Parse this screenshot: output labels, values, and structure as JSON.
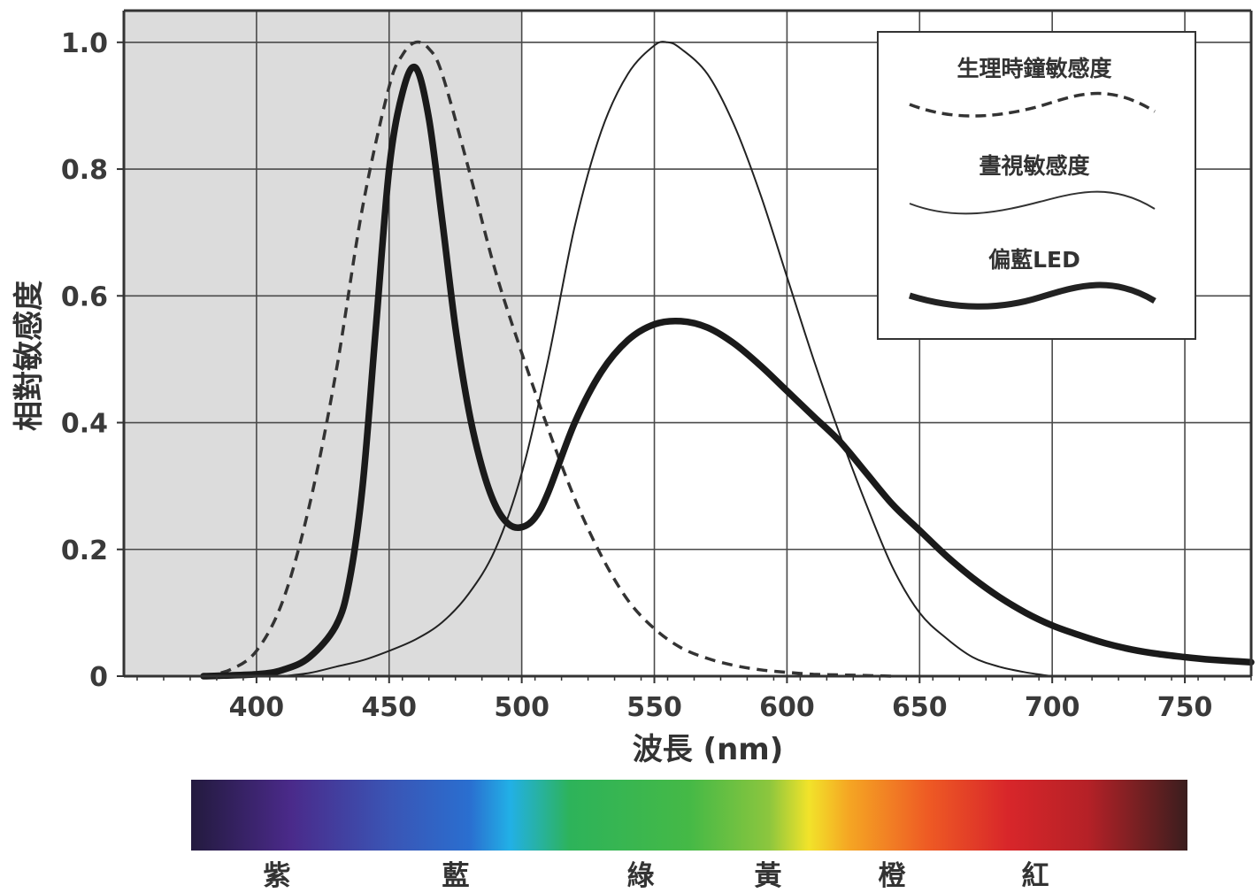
{
  "chart_data": {
    "type": "line",
    "xlabel": "波長 (nm)",
    "ylabel": "相對敏感度",
    "xlim": [
      350,
      775
    ],
    "ylim": [
      0,
      1.05
    ],
    "x_ticks": [
      400,
      450,
      500,
      550,
      600,
      650,
      700,
      750
    ],
    "y_ticks": [
      {
        "value": 0,
        "label": "0"
      },
      {
        "value": 0.2,
        "label": "0.2"
      },
      {
        "value": 0.4,
        "label": "0.4"
      },
      {
        "value": 0.6,
        "label": "0.6"
      },
      {
        "value": 0.8,
        "label": "0.8"
      },
      {
        "value": 1.0,
        "label": "1.0"
      }
    ],
    "grid": true,
    "shaded_region": {
      "x_from": 350,
      "x_to": 500,
      "color": "#dcdcdc"
    },
    "legend_position": "top-right",
    "series": [
      {
        "name": "生理時鐘敏感度",
        "style": "dashed",
        "x": [
          380,
          390,
          400,
          410,
          420,
          430,
          440,
          450,
          455,
          460,
          465,
          470,
          480,
          490,
          500,
          510,
          520,
          530,
          540,
          550,
          560,
          570,
          580,
          590,
          600,
          610,
          620,
          630,
          640
        ],
        "y": [
          0.0,
          0.01,
          0.04,
          0.12,
          0.27,
          0.48,
          0.74,
          0.93,
          0.98,
          1.0,
          0.99,
          0.95,
          0.8,
          0.64,
          0.51,
          0.39,
          0.28,
          0.19,
          0.12,
          0.075,
          0.045,
          0.028,
          0.017,
          0.01,
          0.006,
          0.003,
          0.002,
          0.001,
          0.0
        ]
      },
      {
        "name": "晝視敏感度",
        "style": "thin",
        "x": [
          410,
          420,
          430,
          440,
          450,
          460,
          470,
          480,
          490,
          500,
          510,
          520,
          530,
          540,
          550,
          555,
          560,
          570,
          580,
          590,
          600,
          610,
          620,
          630,
          640,
          650,
          660,
          670,
          680,
          690,
          700
        ],
        "y": [
          0.0,
          0.005,
          0.015,
          0.025,
          0.04,
          0.058,
          0.085,
          0.13,
          0.2,
          0.32,
          0.5,
          0.71,
          0.86,
          0.95,
          0.995,
          1.0,
          0.99,
          0.95,
          0.87,
          0.76,
          0.63,
          0.5,
          0.38,
          0.27,
          0.17,
          0.1,
          0.06,
          0.03,
          0.015,
          0.006,
          0.0
        ]
      },
      {
        "name": "偏藍LED",
        "style": "thick",
        "x": [
          380,
          400,
          410,
          420,
          430,
          435,
          440,
          445,
          450,
          455,
          460,
          465,
          470,
          475,
          480,
          485,
          490,
          495,
          500,
          505,
          510,
          520,
          530,
          540,
          550,
          560,
          570,
          580,
          590,
          600,
          610,
          620,
          630,
          640,
          650,
          660,
          670,
          680,
          690,
          700,
          710,
          720,
          730,
          740,
          750,
          760,
          775
        ],
        "y": [
          0.0,
          0.003,
          0.01,
          0.03,
          0.08,
          0.15,
          0.3,
          0.55,
          0.8,
          0.92,
          0.96,
          0.88,
          0.72,
          0.55,
          0.42,
          0.33,
          0.27,
          0.24,
          0.235,
          0.25,
          0.29,
          0.4,
          0.48,
          0.53,
          0.555,
          0.56,
          0.55,
          0.525,
          0.49,
          0.45,
          0.41,
          0.37,
          0.32,
          0.27,
          0.23,
          0.19,
          0.155,
          0.125,
          0.1,
          0.08,
          0.065,
          0.052,
          0.042,
          0.035,
          0.03,
          0.026,
          0.022
        ]
      }
    ]
  },
  "legend": {
    "items": [
      {
        "label": "生理時鐘敏感度",
        "style": "dashed"
      },
      {
        "label": "晝視敏感度",
        "style": "thin"
      },
      {
        "label": "偏藍LED",
        "style": "thick"
      }
    ]
  },
  "spectrum": {
    "labels": [
      "紫",
      "藍",
      "綠",
      "黃",
      "橙",
      "紅"
    ],
    "colors": [
      "#231a3e",
      "#4a2a8a",
      "#3a55b5",
      "#2a6fd0",
      "#22b0e6",
      "#2db35a",
      "#45b946",
      "#8cc63e",
      "#f2e32a",
      "#f5a623",
      "#ee5a24",
      "#d8262a",
      "#b52127",
      "#3a1e1e"
    ]
  }
}
